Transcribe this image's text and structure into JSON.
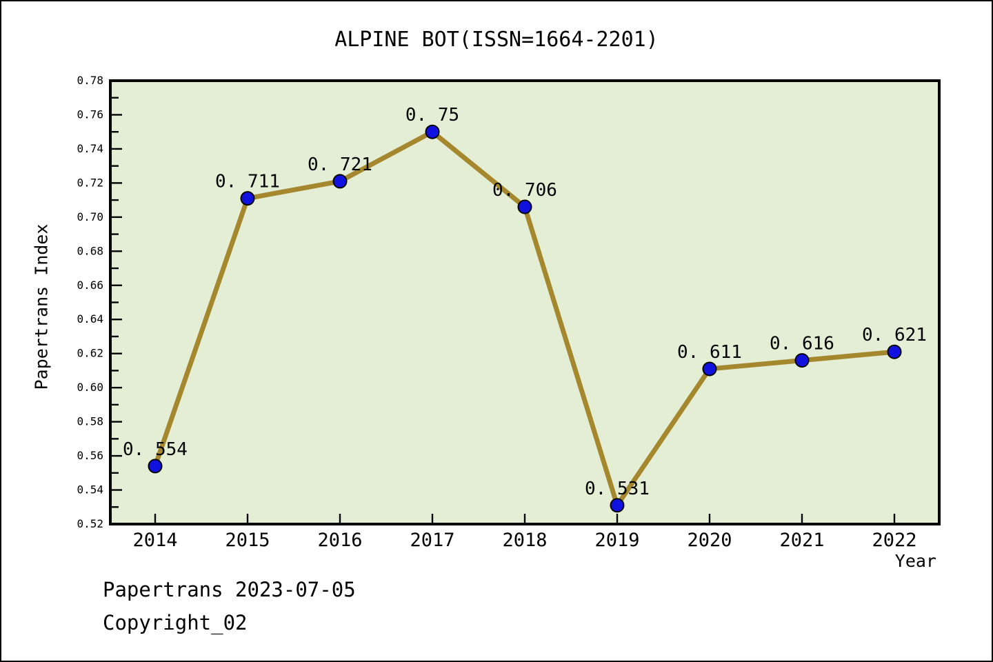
{
  "page": {
    "title": "ALPINE BOT(ISSN=1664-2201)"
  },
  "footer": {
    "line1": "Papertrans 2023-07-05",
    "line2": "Copyright_02"
  },
  "chart_data": {
    "type": "line",
    "title": "ALPINE BOT(ISSN=1664-2201)",
    "xlabel": "Year",
    "ylabel": "Papertrans Index",
    "categories": [
      "2014",
      "2015",
      "2016",
      "2017",
      "2018",
      "2019",
      "2020",
      "2021",
      "2022"
    ],
    "values": [
      0.554,
      0.711,
      0.721,
      0.75,
      0.706,
      0.531,
      0.611,
      0.616,
      0.621
    ],
    "point_labels": [
      "0. 554",
      "0. 711",
      "0. 721",
      "0. 75",
      "0. 706",
      "0. 531",
      "0. 611",
      "0. 616",
      "0. 621"
    ],
    "ylim": [
      0.52,
      0.78
    ],
    "y_major_step": 0.02,
    "y_minor_step": 0.01,
    "grid": false,
    "legend": "none",
    "colors": {
      "line": "#a5882e",
      "marker_fill": "#1212e0",
      "marker_edge": "#000000",
      "plot_bg": "#e3eed5",
      "axis": "#000000",
      "text": "#000000",
      "page_bg": "#ffffff"
    }
  }
}
